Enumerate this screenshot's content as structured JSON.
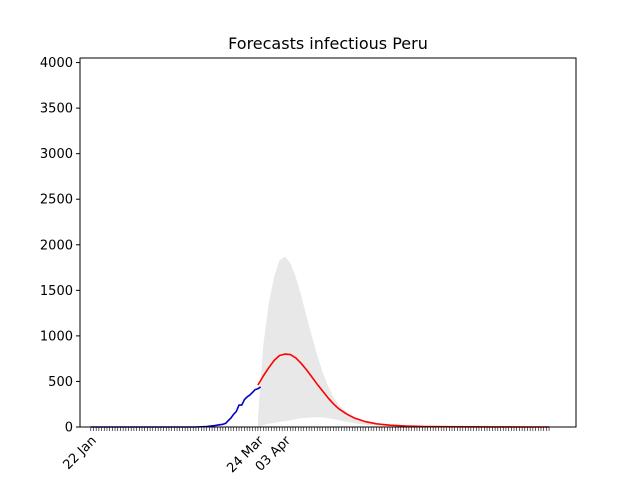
{
  "chart_data": {
    "type": "line",
    "title": "Forecasts infectious Peru",
    "xlabel": "",
    "ylabel": "",
    "ylim": [
      0,
      4050
    ],
    "yticks": [
      0,
      500,
      1000,
      1500,
      2000,
      2500,
      3000,
      3500,
      4000
    ],
    "xtick_labels": [
      {
        "date": "2020-01-22",
        "label": "22 Jan"
      },
      {
        "date": "2020-03-24",
        "label": "24 Mar"
      },
      {
        "date": "2020-04-03",
        "label": "03 Apr"
      }
    ],
    "xlim": [
      "2020-01-18",
      "2020-07-20"
    ],
    "minor_tick_every_days": 1,
    "minor_ticks_range": [
      "2020-01-22",
      "2020-07-10"
    ],
    "grid": false,
    "legend": "none",
    "colors": {
      "observed": "#0000cc",
      "forecast": "#ff0000",
      "interval": "#e8e8e8"
    },
    "series": [
      {
        "role": "observed",
        "x": [
          "2020-01-22",
          "2020-02-10",
          "2020-03-01",
          "2020-03-05",
          "2020-03-08",
          "2020-03-10",
          "2020-03-11",
          "2020-03-12",
          "2020-03-13",
          "2020-03-14",
          "2020-03-15",
          "2020-03-16",
          "2020-03-17",
          "2020-03-18",
          "2020-03-19",
          "2020-03-20",
          "2020-03-21",
          "2020-03-22",
          "2020-03-23",
          "2020-03-24",
          "2020-03-25"
        ],
        "values": [
          0,
          0,
          0,
          5,
          15,
          25,
          30,
          40,
          70,
          100,
          140,
          170,
          240,
          240,
          300,
          330,
          350,
          380,
          410,
          420,
          440
        ]
      },
      {
        "role": "forecast",
        "x": [
          "2020-03-24",
          "2020-03-26",
          "2020-03-28",
          "2020-03-30",
          "2020-04-01",
          "2020-04-03",
          "2020-04-05",
          "2020-04-07",
          "2020-04-09",
          "2020-04-11",
          "2020-04-13",
          "2020-04-15",
          "2020-04-17",
          "2020-04-19",
          "2020-04-21",
          "2020-04-23",
          "2020-04-26",
          "2020-04-29",
          "2020-05-03",
          "2020-05-07",
          "2020-05-12",
          "2020-05-18",
          "2020-05-25",
          "2020-06-01",
          "2020-06-10",
          "2020-06-20",
          "2020-07-10"
        ],
        "values": [
          460,
          560,
          650,
          730,
          785,
          800,
          795,
          760,
          700,
          630,
          550,
          470,
          395,
          320,
          255,
          200,
          140,
          95,
          58,
          35,
          20,
          11,
          6,
          3,
          2,
          1,
          0
        ]
      },
      {
        "role": "interval",
        "x": [
          "2020-03-24",
          "2020-03-26",
          "2020-03-28",
          "2020-03-30",
          "2020-04-01",
          "2020-04-03",
          "2020-04-05",
          "2020-04-07",
          "2020-04-09",
          "2020-04-11",
          "2020-04-13",
          "2020-04-15",
          "2020-04-17",
          "2020-04-19",
          "2020-04-21",
          "2020-04-23",
          "2020-04-26",
          "2020-04-29",
          "2020-05-03",
          "2020-05-07",
          "2020-05-12",
          "2020-05-18",
          "2020-05-25",
          "2020-06-01",
          "2020-06-10",
          "2020-06-20",
          "2020-07-10"
        ],
        "upper": [
          100,
          900,
          1350,
          1650,
          1830,
          1870,
          1800,
          1650,
          1450,
          1220,
          1000,
          790,
          600,
          450,
          330,
          240,
          160,
          105,
          65,
          40,
          23,
          13,
          7,
          4,
          2,
          1,
          0
        ],
        "lower": [
          0,
          20,
          35,
          45,
          55,
          65,
          75,
          85,
          95,
          100,
          105,
          108,
          105,
          98,
          88,
          75,
          58,
          40,
          25,
          15,
          8,
          4,
          2,
          1,
          0,
          0,
          0
        ]
      }
    ]
  }
}
